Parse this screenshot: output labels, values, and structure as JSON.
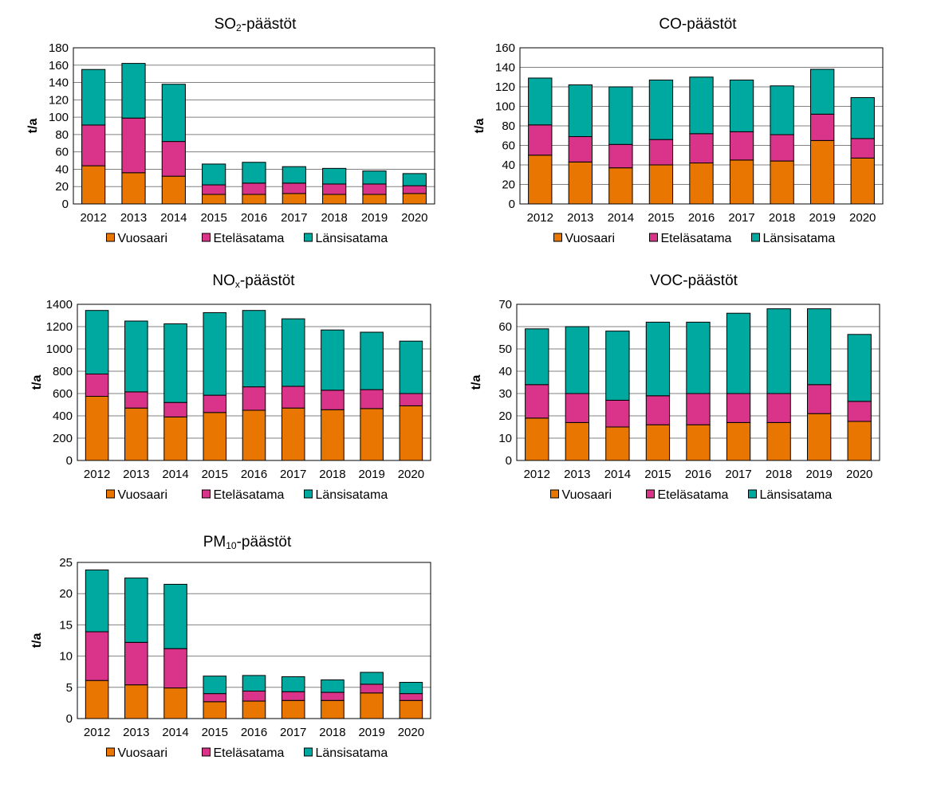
{
  "colors": {
    "Vuosaari": "#E87600",
    "Eteläsatama": "#D93489",
    "Länsisatama": "#00A9A0"
  },
  "chart_data": [
    {
      "type": "bar",
      "stacked": true,
      "title": {
        "main": "SO",
        "sub": "2",
        "suffix": "-päästöt"
      },
      "ylabel": "t/a",
      "ylim": [
        0,
        180
      ],
      "yticks": [
        0,
        20,
        40,
        60,
        80,
        100,
        120,
        140,
        160,
        180
      ],
      "grid": true,
      "legend": "bottom",
      "categories": [
        "2012",
        "2013",
        "2014",
        "2015",
        "2016",
        "2017",
        "2018",
        "2019",
        "2020"
      ],
      "series": [
        {
          "name": "Vuosaari",
          "values": [
            44,
            36,
            32,
            11,
            11,
            12,
            11,
            11,
            12
          ]
        },
        {
          "name": "Eteläsatama",
          "values": [
            47,
            63,
            40,
            11,
            13,
            12,
            12,
            12,
            9
          ]
        },
        {
          "name": "Länsisatama",
          "values": [
            64,
            63,
            66,
            24,
            24,
            19,
            18,
            15,
            14
          ]
        }
      ]
    },
    {
      "type": "bar",
      "stacked": true,
      "title": {
        "main": "CO-päästöt",
        "sub": "",
        "suffix": ""
      },
      "ylabel": "t/a",
      "ylim": [
        0,
        160
      ],
      "yticks": [
        0,
        20,
        40,
        60,
        80,
        100,
        120,
        140,
        160
      ],
      "grid": true,
      "legend": "bottom",
      "categories": [
        "2012",
        "2013",
        "2014",
        "2015",
        "2016",
        "2017",
        "2018",
        "2019",
        "2020"
      ],
      "series": [
        {
          "name": "Vuosaari",
          "values": [
            50,
            43,
            37,
            40,
            42,
            45,
            44,
            65,
            47
          ]
        },
        {
          "name": "Eteläsatama",
          "values": [
            31,
            26,
            24,
            26,
            30,
            29,
            27,
            27,
            20
          ]
        },
        {
          "name": "Länsisatama",
          "values": [
            48,
            53,
            59,
            61,
            58,
            53,
            50,
            46,
            42
          ]
        }
      ]
    },
    {
      "type": "bar",
      "stacked": true,
      "title": {
        "main": "NO",
        "sub": "x",
        "suffix": "-päästöt"
      },
      "ylabel": "t/a",
      "ylim": [
        0,
        1400
      ],
      "yticks": [
        0,
        200,
        400,
        600,
        800,
        1000,
        1200,
        1400
      ],
      "grid": true,
      "legend": "bottom",
      "categories": [
        "2012",
        "2013",
        "2014",
        "2015",
        "2016",
        "2017",
        "2018",
        "2019",
        "2020"
      ],
      "series": [
        {
          "name": "Vuosaari",
          "values": [
            575,
            470,
            390,
            430,
            450,
            470,
            455,
            465,
            490
          ]
        },
        {
          "name": "Eteläsatama",
          "values": [
            200,
            145,
            130,
            155,
            210,
            195,
            175,
            170,
            110
          ]
        },
        {
          "name": "Länsisatama",
          "values": [
            570,
            635,
            705,
            740,
            685,
            605,
            540,
            515,
            470
          ]
        }
      ]
    },
    {
      "type": "bar",
      "stacked": true,
      "title": {
        "main": "VOC-päästöt",
        "sub": "",
        "suffix": ""
      },
      "ylabel": "t/a",
      "ylim": [
        0,
        70
      ],
      "yticks": [
        0,
        10,
        20,
        30,
        40,
        50,
        60,
        70
      ],
      "grid": true,
      "legend": "bottom",
      "categories": [
        "2012",
        "2013",
        "2014",
        "2015",
        "2016",
        "2017",
        "2018",
        "2019",
        "2020"
      ],
      "series": [
        {
          "name": "Vuosaari",
          "values": [
            19,
            17,
            15,
            16,
            16,
            17,
            17,
            21,
            17.5
          ]
        },
        {
          "name": "Eteläsatama",
          "values": [
            15,
            13,
            12,
            13,
            14,
            13,
            13,
            13,
            9
          ]
        },
        {
          "name": "Länsisatama",
          "values": [
            25,
            30,
            31,
            33,
            32,
            36,
            38,
            34,
            30
          ]
        }
      ]
    },
    {
      "type": "bar",
      "stacked": true,
      "title": {
        "main": "PM",
        "sub": "10",
        "suffix": "-päästöt"
      },
      "ylabel": "t/a",
      "ylim": [
        0,
        25
      ],
      "yticks": [
        0,
        5,
        10,
        15,
        20,
        25
      ],
      "grid": true,
      "legend": "bottom",
      "categories": [
        "2012",
        "2013",
        "2014",
        "2015",
        "2016",
        "2017",
        "2018",
        "2019",
        "2020"
      ],
      "series": [
        {
          "name": "Vuosaari",
          "values": [
            6.1,
            5.4,
            4.9,
            2.7,
            2.8,
            2.9,
            2.9,
            4.1,
            2.9
          ]
        },
        {
          "name": "Eteläsatama",
          "values": [
            7.8,
            6.8,
            6.3,
            1.3,
            1.6,
            1.4,
            1.3,
            1.4,
            1.1
          ]
        },
        {
          "name": "Länsisatama",
          "values": [
            9.9,
            10.3,
            10.3,
            2.8,
            2.5,
            2.4,
            2.0,
            1.9,
            1.8
          ]
        }
      ]
    }
  ]
}
